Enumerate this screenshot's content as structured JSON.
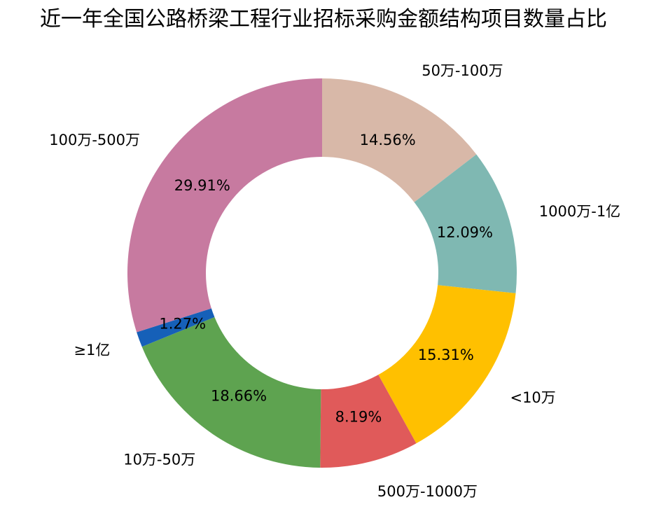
{
  "chart_data": {
    "type": "pie",
    "title": "近一年全国公路桥梁工程行业招标采购金额结构项目数量占比",
    "donut": true,
    "slices": [
      {
        "label": "50万-100万",
        "value": 14.56,
        "display": "14.56%",
        "color": "#d8b8a8"
      },
      {
        "label": "1000万-1亿",
        "value": 12.09,
        "display": "12.09%",
        "color": "#7fb8b2"
      },
      {
        "label": "<10万",
        "value": 15.31,
        "display": "15.31%",
        "color": "#ffc000"
      },
      {
        "label": "500万-1000万",
        "value": 8.19,
        "display": "8.19%",
        "color": "#e05a5a"
      },
      {
        "label": "10万-50万",
        "value": 18.66,
        "display": "18.66%",
        "color": "#5ea350"
      },
      {
        "label": "≥1亿",
        "value": 1.27,
        "display": "1.27%",
        "color": "#1660b8"
      },
      {
        "label": "100万-500万",
        "value": 29.91,
        "display": "29.91%",
        "color": "#c77aa0"
      }
    ]
  }
}
